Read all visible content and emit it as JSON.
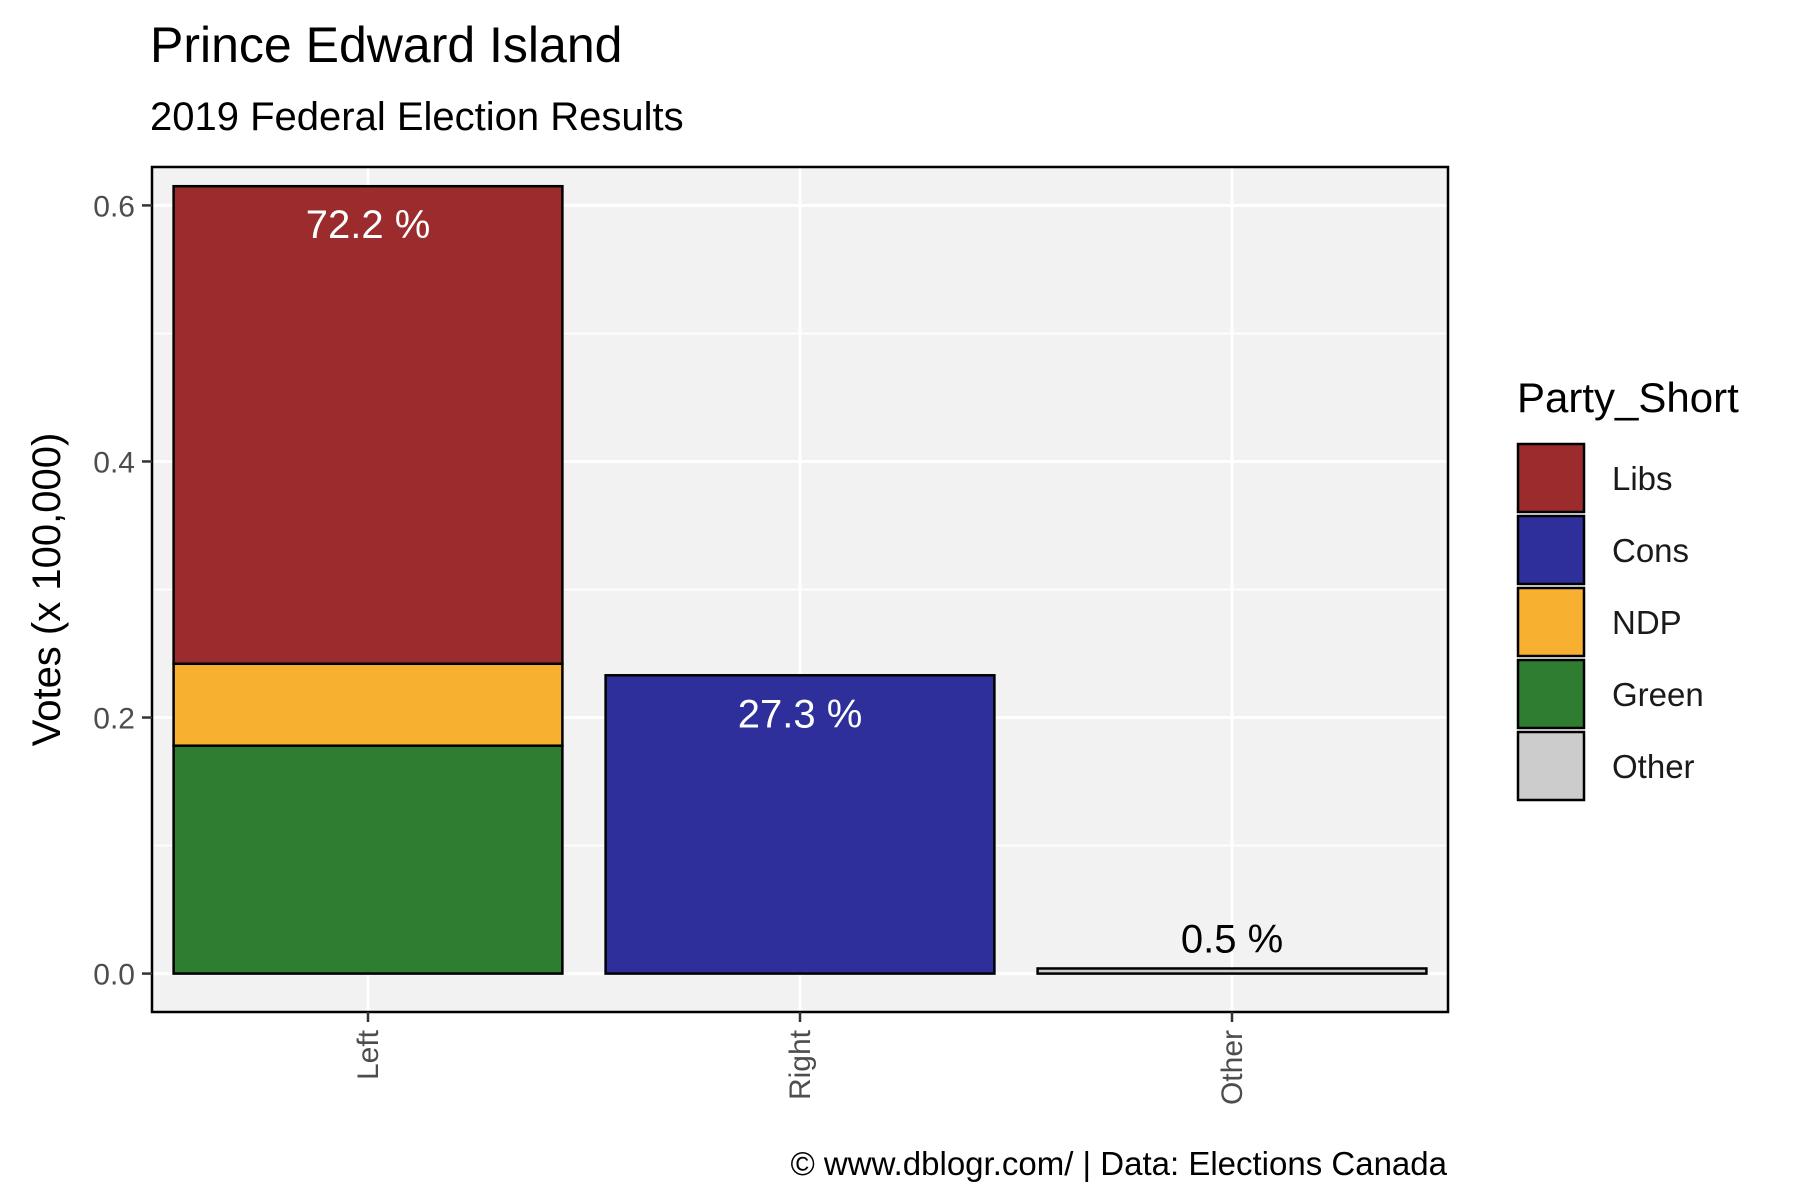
{
  "title": "Prince Edward Island",
  "subtitle": "2019 Federal Election Results",
  "caption": "© www.dblogr.com/  |  Data: Elections Canada",
  "colors": {
    "panel_background": "#f2f2f2",
    "grid": "#ffffff",
    "bar_outline": "#000000",
    "label_light": "#ffffff",
    "label_dark": "#000000"
  },
  "chart_data": {
    "type": "bar",
    "stacked": true,
    "title": "Prince Edward Island",
    "subtitle": "2019 Federal Election Results",
    "xlabel": "",
    "ylabel": "Votes (x 100,000)",
    "ylim": [
      -0.03,
      0.63
    ],
    "yticks": [
      0.0,
      0.2,
      0.4,
      0.6
    ],
    "ytick_labels": [
      "0.0",
      "0.2",
      "0.4",
      "0.6"
    ],
    "categories": [
      "Left",
      "Right",
      "Other"
    ],
    "series": [
      {
        "name": "Libs",
        "color": "#9b2b2c",
        "values": [
          0.373,
          0,
          0
        ]
      },
      {
        "name": "Cons",
        "color": "#2e2f9a",
        "values": [
          0,
          0.233,
          0
        ]
      },
      {
        "name": "NDP",
        "color": "#f8b030",
        "values": [
          0.064,
          0,
          0
        ]
      },
      {
        "name": "Green",
        "color": "#2e7d30",
        "values": [
          0.178,
          0,
          0
        ]
      },
      {
        "name": "Other",
        "color": "#cccccc",
        "values": [
          0,
          0,
          0.004
        ]
      }
    ],
    "stack_order": [
      "Green",
      "NDP",
      "Libs",
      "Cons",
      "Other"
    ],
    "bar_labels": [
      {
        "category": "Left",
        "text": "72.2 %",
        "color": "#ffffff",
        "position": "inside-top"
      },
      {
        "category": "Right",
        "text": "27.3 %",
        "color": "#ffffff",
        "position": "inside-top"
      },
      {
        "category": "Other",
        "text": "0.5 %",
        "color": "#000000",
        "position": "above"
      }
    ],
    "legend": {
      "title": "Party_Short",
      "position": "right",
      "entries": [
        "Libs",
        "Cons",
        "NDP",
        "Green",
        "Other"
      ]
    },
    "grid": true
  }
}
